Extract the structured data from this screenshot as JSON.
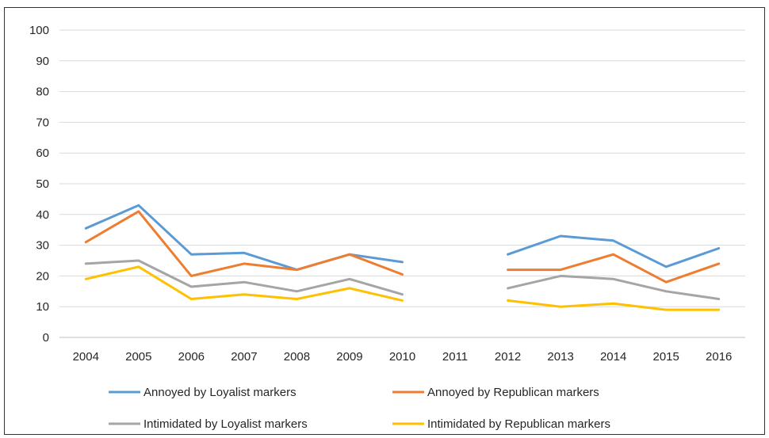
{
  "chart_data": {
    "type": "line",
    "title": "",
    "xlabel": "",
    "ylabel": "",
    "categories": [
      "2004",
      "2005",
      "2006",
      "2007",
      "2008",
      "2009",
      "2010",
      "2011",
      "2012",
      "2013",
      "2014",
      "2015",
      "2016"
    ],
    "ylim": [
      0,
      100
    ],
    "yticks": [
      "0",
      "10",
      "20",
      "30",
      "40",
      "50",
      "60",
      "70",
      "80",
      "90",
      "100"
    ],
    "grid": true,
    "legend_position": "bottom",
    "series": [
      {
        "name": "Annoyed by Loyalist markers",
        "color": "#5b9bd5",
        "values": [
          35.5,
          43,
          27,
          27.5,
          22,
          27,
          24.5,
          null,
          27,
          33,
          31.5,
          23,
          29
        ]
      },
      {
        "name": "Annoyed by Republican markers",
        "color": "#ed7d31",
        "values": [
          31,
          41,
          20,
          24,
          22,
          27,
          20.5,
          null,
          22,
          22,
          27,
          18,
          24
        ]
      },
      {
        "name": "Intimidated by Loyalist markers",
        "color": "#a5a5a5",
        "values": [
          24,
          25,
          16.5,
          18,
          15,
          19,
          14,
          null,
          16,
          20,
          19,
          15,
          12.5
        ]
      },
      {
        "name": "Intimidated by Republican markers",
        "color": "#ffc000",
        "values": [
          19,
          23,
          12.5,
          14,
          12.5,
          16,
          12,
          null,
          12,
          10,
          11,
          9,
          9
        ]
      }
    ]
  }
}
